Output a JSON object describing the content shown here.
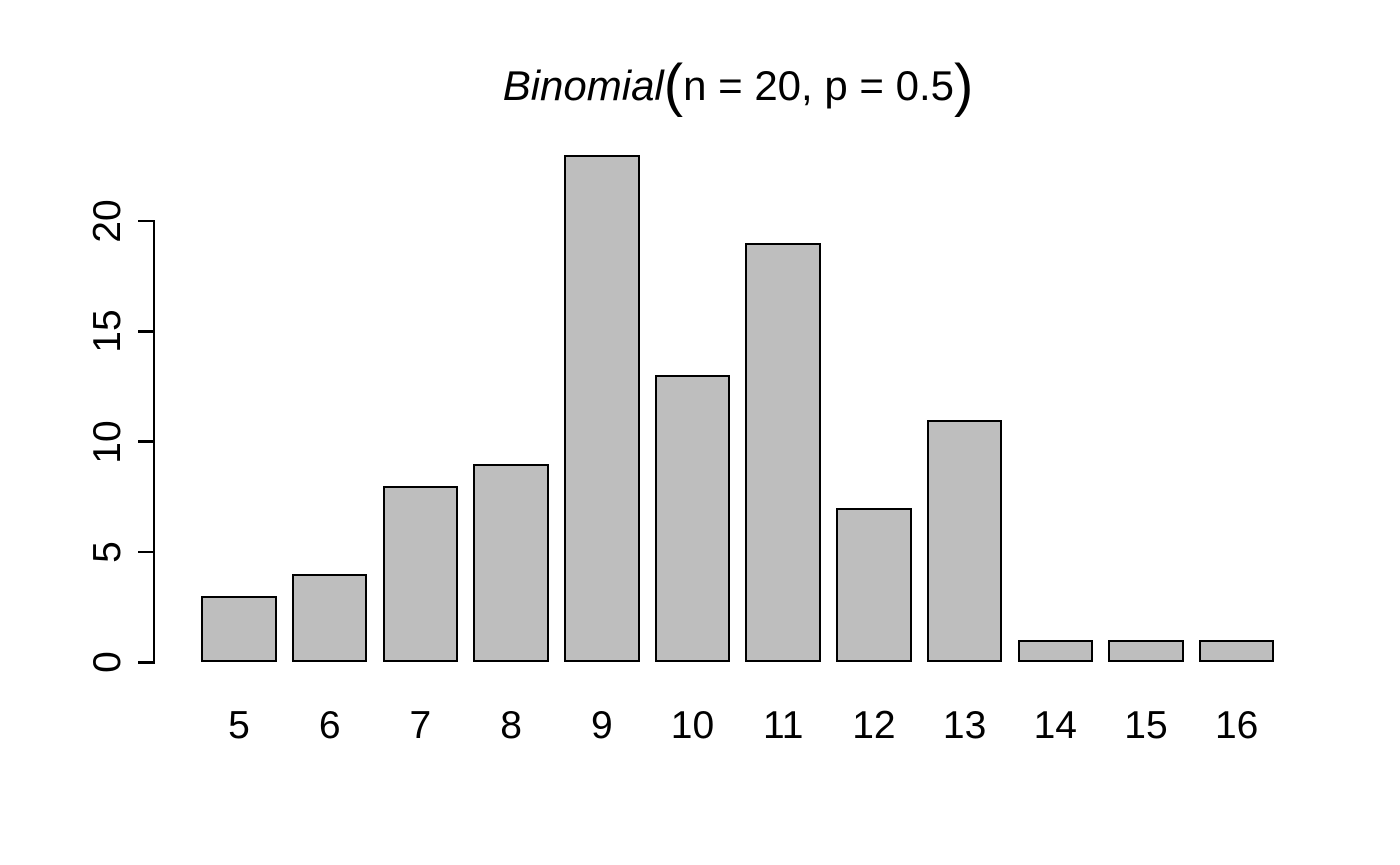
{
  "chart_data": {
    "type": "bar",
    "title": "Binomial(n = 20, p = 0.5)",
    "title_parts": {
      "function_name": "Binomial",
      "open": "(",
      "arguments": "n = 20, p = 0.5",
      "close": ")"
    },
    "categories": [
      "5",
      "6",
      "7",
      "8",
      "9",
      "10",
      "11",
      "12",
      "13",
      "14",
      "15",
      "16"
    ],
    "values": [
      3,
      4,
      8,
      9,
      23,
      13,
      19,
      7,
      11,
      1,
      1,
      1
    ],
    "xlabel": "",
    "ylabel": "",
    "ylim": [
      0,
      23
    ],
    "yticks": [
      0,
      5,
      10,
      15,
      20
    ],
    "grid": false,
    "legend": "none",
    "bar_fill": "#bebebe",
    "bar_border": "#000000",
    "background": "#ffffff",
    "text_color": "#000000"
  }
}
